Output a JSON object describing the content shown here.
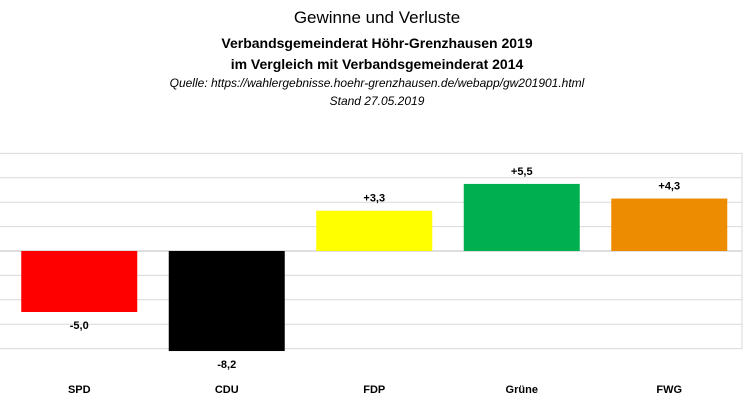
{
  "chart_data": {
    "type": "bar",
    "title": "Gewinne und Verluste",
    "subtitle_1": "Verbandsgemeinderat Höhr-Grenzhausen 2019",
    "subtitle_2": "im  Vergleich mit Verbandsgemeinderat 2014",
    "source": "Quelle: https://wahlergebnisse.hoehr-grenzhausen.de/webapp/gw201901.html",
    "date": "Stand 27.05.2019",
    "categories": [
      "SPD",
      "CDU",
      "FDP",
      "Grüne",
      "FWG"
    ],
    "values": [
      -5.0,
      -8.2,
      3.3,
      5.5,
      4.3
    ],
    "value_labels": [
      "-5,0",
      "-8,2",
      "+3,3",
      "+5,5",
      "+4,3"
    ],
    "colors": [
      "#ff0000",
      "#000000",
      "#ffff00",
      "#00b050",
      "#ed8c00"
    ],
    "ylim": [
      -8.2,
      7.9
    ],
    "grid": true,
    "legend": "none"
  }
}
